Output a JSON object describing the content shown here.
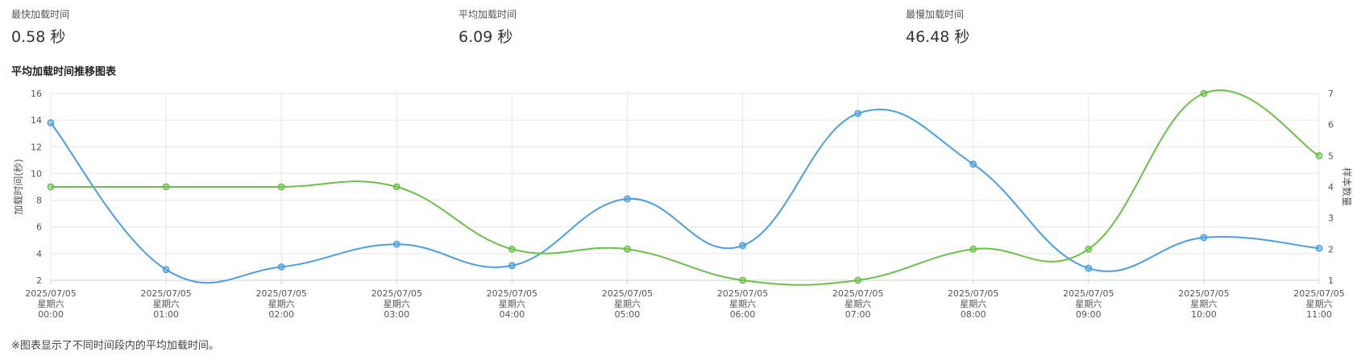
{
  "stats": [
    {
      "label": "最快加载时间",
      "value": "0.58 秒"
    },
    {
      "label": "平均加载时间",
      "value": "6.09 秒"
    },
    {
      "label": "最慢加载时间",
      "value": "46.48 秒"
    }
  ],
  "chart_title": "平均加载时间推移图表",
  "footnote": "※图表显示了不同时间段内的平均加载时间。",
  "chart_data": {
    "type": "line",
    "x_labels": [
      [
        "2025/07/05",
        "星期六",
        "00:00"
      ],
      [
        "2025/07/05",
        "星期六",
        "01:00"
      ],
      [
        "2025/07/05",
        "星期六",
        "02:00"
      ],
      [
        "2025/07/05",
        "星期六",
        "03:00"
      ],
      [
        "2025/07/05",
        "星期六",
        "04:00"
      ],
      [
        "2025/07/05",
        "星期六",
        "05:00"
      ],
      [
        "2025/07/05",
        "星期六",
        "06:00"
      ],
      [
        "2025/07/05",
        "星期六",
        "07:00"
      ],
      [
        "2025/07/05",
        "星期六",
        "08:00"
      ],
      [
        "2025/07/05",
        "星期六",
        "09:00"
      ],
      [
        "2025/07/05",
        "星期六",
        "10:00"
      ],
      [
        "2025/07/05",
        "星期六",
        "11:00"
      ]
    ],
    "y_left": {
      "label": "加载时间(秒)",
      "min": 2,
      "max": 16,
      "ticks": [
        2,
        4,
        6,
        8,
        10,
        12,
        14,
        16
      ]
    },
    "y_right": {
      "label": "样本数量",
      "min": 1,
      "max": 7,
      "ticks": [
        1,
        2,
        3,
        4,
        5,
        6,
        7
      ]
    },
    "grid": true,
    "series": [
      {
        "axis": "left",
        "color": "#4a9fe4",
        "values": [
          13.8,
          2.8,
          3.0,
          4.7,
          3.1,
          8.1,
          4.6,
          14.5,
          10.7,
          2.9,
          5.2,
          4.4
        ]
      },
      {
        "axis": "right",
        "color": "#6cc04a",
        "values": [
          4,
          4,
          4,
          4,
          2,
          2,
          1,
          1,
          2,
          2,
          7,
          5
        ]
      }
    ]
  }
}
